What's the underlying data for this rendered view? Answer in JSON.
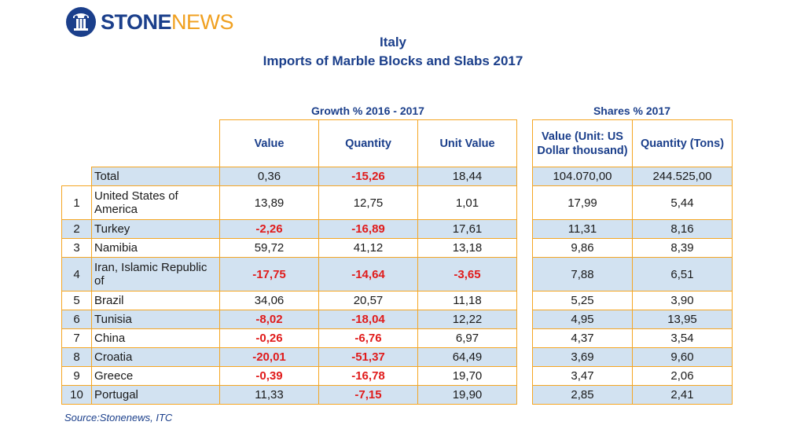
{
  "logo": {
    "stone": "STONE",
    "news": "NEWS"
  },
  "title": {
    "line1": "Italy",
    "line2": "Imports of Marble Blocks and Slabs 2017"
  },
  "growth_header": "Growth % 2016 - 2017",
  "shares_header": "Shares % 2017",
  "columns": {
    "value": "Value",
    "quantity": "Quantity",
    "unit_value": "Unit Value",
    "share_value": "Value (Unit: US Dollar thousand)",
    "share_quantity": "Quantity (Tons)"
  },
  "total": {
    "label": "Total",
    "value": "0,36",
    "quantity": "-15,26",
    "unit_value": "18,44",
    "share_value": "104.070,00",
    "share_quantity": "244.525,00"
  },
  "rows": [
    {
      "rank": "1",
      "country": "United States of America",
      "value": "13,89",
      "quantity": "12,75",
      "unit_value": "1,01",
      "share_value": "17,99",
      "share_quantity": "5,44"
    },
    {
      "rank": "2",
      "country": "Turkey",
      "value": "-2,26",
      "quantity": "-16,89",
      "unit_value": "17,61",
      "share_value": "11,31",
      "share_quantity": "8,16"
    },
    {
      "rank": "3",
      "country": "Namibia",
      "value": "59,72",
      "quantity": "41,12",
      "unit_value": "13,18",
      "share_value": "9,86",
      "share_quantity": "8,39"
    },
    {
      "rank": "4",
      "country": "Iran, Islamic Republic of",
      "value": "-17,75",
      "quantity": "-14,64",
      "unit_value": "-3,65",
      "share_value": "7,88",
      "share_quantity": "6,51"
    },
    {
      "rank": "5",
      "country": "Brazil",
      "value": "34,06",
      "quantity": "20,57",
      "unit_value": "11,18",
      "share_value": "5,25",
      "share_quantity": "3,90"
    },
    {
      "rank": "6",
      "country": "Tunisia",
      "value": "-8,02",
      "quantity": "-18,04",
      "unit_value": "12,22",
      "share_value": "4,95",
      "share_quantity": "13,95"
    },
    {
      "rank": "7",
      "country": "China",
      "value": "-0,26",
      "quantity": "-6,76",
      "unit_value": "6,97",
      "share_value": "4,37",
      "share_quantity": "3,54"
    },
    {
      "rank": "8",
      "country": "Croatia",
      "value": "-20,01",
      "quantity": "-51,37",
      "unit_value": "64,49",
      "share_value": "3,69",
      "share_quantity": "9,60"
    },
    {
      "rank": "9",
      "country": "Greece",
      "value": "-0,39",
      "quantity": "-16,78",
      "unit_value": "19,70",
      "share_value": "3,47",
      "share_quantity": "2,06"
    },
    {
      "rank": "10",
      "country": "Portugal",
      "value": "11,33",
      "quantity": "-7,15",
      "unit_value": "19,90",
      "share_value": "2,85",
      "share_quantity": "2,41"
    }
  ],
  "source": "Source:Stonenews, ITC",
  "colors": {
    "brand_blue": "#1b3f8b",
    "brand_orange": "#f0a020",
    "border": "#f5a623",
    "shade": "#d2e2f1",
    "negative": "#e01b1b"
  }
}
